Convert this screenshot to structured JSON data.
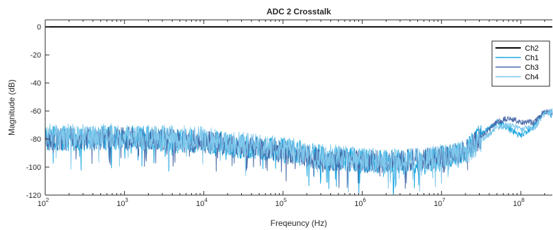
{
  "chart_data": {
    "type": "line",
    "title": "ADC 2 Crosstalk",
    "xlabel": "Freqeuncy (Hz)",
    "ylabel": "Magnitude (dB)",
    "x_scale": "log",
    "xlim": [
      100,
      250000000
    ],
    "ylim": [
      -120,
      5
    ],
    "x_ticks": [
      {
        "base": "10",
        "exp": "2"
      },
      {
        "base": "10",
        "exp": "3"
      },
      {
        "base": "10",
        "exp": "4"
      },
      {
        "base": "10",
        "exp": "5"
      },
      {
        "base": "10",
        "exp": "6"
      },
      {
        "base": "10",
        "exp": "7"
      },
      {
        "base": "10",
        "exp": "8"
      }
    ],
    "y_ticks": [
      "0",
      "-20",
      "-40",
      "-60",
      "-80",
      "-100",
      "-120"
    ],
    "y_tick_values": [
      0,
      -20,
      -40,
      -60,
      -80,
      -100,
      -120
    ],
    "grid": false,
    "legend_position": "top-right",
    "series": [
      {
        "name": "Ch2",
        "color": "#000000",
        "noise": 0,
        "x": [
          100,
          250000000
        ],
        "y": [
          0,
          0
        ]
      },
      {
        "name": "Ch1",
        "color": "#1aa7df",
        "noise": 9,
        "x": [
          100,
          1000,
          10000,
          30000,
          100000,
          300000,
          1000000,
          3000000,
          10000000,
          20000000,
          30000000,
          50000000,
          70000000,
          100000000,
          150000000,
          200000000,
          250000000
        ],
        "y": [
          -80,
          -79,
          -82,
          -85,
          -88,
          -93,
          -96,
          -97,
          -94,
          -90,
          -78,
          -68,
          -72,
          -78,
          -70,
          -60,
          -63
        ]
      },
      {
        "name": "Ch3",
        "color": "#4a6aa8",
        "noise": 8,
        "x": [
          100,
          1000,
          10000,
          30000,
          100000,
          300000,
          1000000,
          3000000,
          10000000,
          20000000,
          30000000,
          50000000,
          70000000,
          100000000,
          150000000,
          200000000,
          250000000
        ],
        "y": [
          -80,
          -79,
          -82,
          -85,
          -89,
          -94,
          -96,
          -96,
          -93,
          -89,
          -80,
          -68,
          -65,
          -68,
          -68,
          -60,
          -61
        ]
      },
      {
        "name": "Ch4",
        "color": "#7fc8ec",
        "noise": 9,
        "x": [
          100,
          1000,
          10000,
          30000,
          100000,
          300000,
          1000000,
          3000000,
          10000000,
          20000000,
          30000000,
          50000000,
          70000000,
          100000000,
          150000000,
          200000000,
          250000000
        ],
        "y": [
          -78,
          -78,
          -80,
          -84,
          -87,
          -92,
          -95,
          -96,
          -93,
          -90,
          -82,
          -72,
          -70,
          -73,
          -72,
          -62,
          -60
        ]
      }
    ]
  }
}
